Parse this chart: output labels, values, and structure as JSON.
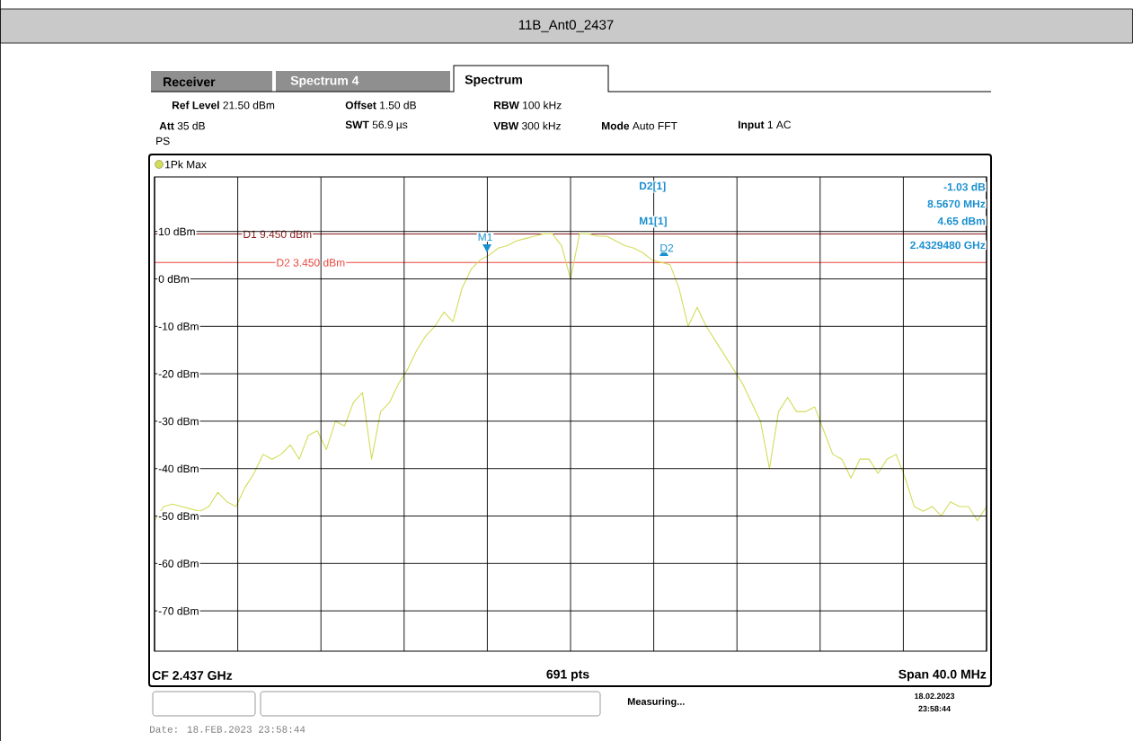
{
  "chart_data": {
    "type": "line",
    "title": "11B_Ant0_2437",
    "categories": [
      null,
      null,
      null,
      null,
      null,
      null,
      null,
      null,
      null,
      null,
      null,
      null,
      null,
      null,
      null,
      null,
      null,
      null,
      null,
      null,
      null,
      null,
      null,
      null,
      null,
      null,
      null,
      null,
      null,
      null,
      null,
      null,
      null,
      null,
      null,
      null,
      null,
      null,
      null,
      null,
      null,
      null,
      null,
      null,
      null,
      null,
      null,
      null,
      null,
      null,
      null,
      null,
      null,
      null,
      null,
      null,
      null,
      null,
      null,
      null,
      null,
      null,
      null,
      null,
      null,
      null,
      null,
      null,
      null,
      null,
      null,
      null,
      null,
      null,
      null,
      null,
      null,
      null,
      null,
      null,
      null,
      null,
      null,
      null,
      null,
      null,
      null,
      null,
      null,
      null,
      null,
      null,
      null
    ],
    "ylim": [
      -78.5,
      21.5
    ],
    "yticks": [
      {
        "value": -70,
        "label": "-70 dBm"
      },
      {
        "value": -60,
        "label": "-60 dBm"
      },
      {
        "value": -50,
        "label": "-50 dBm"
      },
      {
        "value": -40,
        "label": "-40 dBm"
      },
      {
        "value": -30,
        "label": "-30 dBm"
      },
      {
        "value": -20,
        "label": "-20 dBm"
      },
      {
        "value": -10,
        "label": "-10 dBm"
      },
      {
        "value": 0,
        "label": "0 dBm"
      },
      {
        "value": 10,
        "label": "10 dBm"
      }
    ],
    "grid": true,
    "legend": "top left",
    "series": [
      {
        "name": "1Pk Max",
        "color": "#d4dc5a",
        "values": [
          -51,
          -48,
          -47.5,
          -48,
          -48.5,
          -49,
          -48,
          -45,
          -47,
          -48,
          -44,
          -41,
          -37,
          -38,
          -37,
          -35,
          -38,
          -33,
          -32,
          -36,
          -30,
          -31,
          -26,
          -24,
          -38,
          -28,
          -26,
          -22,
          -19,
          -15,
          -12,
          -10,
          -7,
          -9,
          -2,
          2,
          4,
          5,
          6.5,
          7,
          8,
          8.5,
          9,
          9.5,
          9.5,
          7,
          0,
          9.5,
          9.5,
          9,
          9,
          8,
          7,
          6.5,
          5.5,
          4,
          3.5,
          3,
          -2,
          -10,
          -6,
          -10,
          -13,
          -16,
          -19,
          -22,
          -26,
          -30,
          -40,
          -28,
          -25,
          -28,
          -28,
          -27,
          -32,
          -37,
          -38,
          -42,
          -38,
          -38,
          -41,
          -38,
          -37,
          -42,
          -48,
          -49,
          -48,
          -50,
          -47,
          -48,
          -48,
          -51,
          -48
        ]
      }
    ],
    "ref_lines": [
      {
        "axis": "y",
        "value": 9.45,
        "label": "D1 9.450 dBm",
        "color": "#8b1a1a"
      },
      {
        "axis": "y",
        "value": 3.45,
        "label": "D2 3.450 dBm",
        "color": "#e8463c"
      }
    ],
    "annotations": [
      "Receiver",
      "Spectrum 4",
      "Spectrum",
      "**Ref Level** 21.50 dBm",
      "**Offset** 1.50 dB",
      "**RBW** 100 kHz",
      "**Att** 35 dB",
      "**SWT** 56.9 µs",
      "**VBW** 300 kHz",
      "**Mode** Auto FFT",
      "**Input** 1 AC",
      "PS",
      "CF 2.437 GHz",
      "691 pts",
      "Span 40.0 MHz",
      "Measuring...",
      "18.02.2023",
      "23:58:44",
      "Date: 18.FEB.2023 23:58:44",
      "D2[1]",
      "-1.03 dB",
      "8.5670 MHz",
      "M1[1]",
      "4.65 dBm",
      "2.4329480 GHz",
      "M1",
      "D2"
    ]
  }
}
